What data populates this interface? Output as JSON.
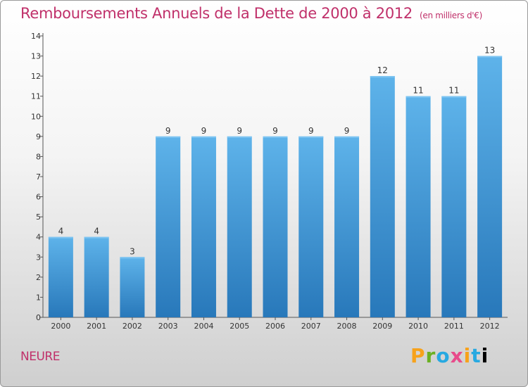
{
  "title": "Remboursements Annuels de la Dette de 2000 à 2012",
  "subtitle": "(en milliers d'€)",
  "commune": "NEURE",
  "logo": {
    "letters": [
      "P",
      "r",
      "o",
      "x",
      "i",
      "t",
      "i"
    ],
    "text": "Proxiti"
  },
  "colors": {
    "title": "#c0306a",
    "bar_top": "#5aaee6",
    "bar_bottom": "#2a7bbd"
  },
  "chart_data": {
    "type": "bar",
    "categories": [
      "2000",
      "2001",
      "2002",
      "2003",
      "2004",
      "2005",
      "2006",
      "2007",
      "2008",
      "2009",
      "2010",
      "2011",
      "2012"
    ],
    "values": [
      4,
      4,
      3,
      9,
      9,
      9,
      9,
      9,
      9,
      12,
      11,
      11,
      13
    ],
    "ylim": [
      0,
      14
    ],
    "yticks": [
      0,
      1,
      2,
      3,
      4,
      5,
      6,
      7,
      8,
      9,
      10,
      11,
      12,
      13,
      14
    ],
    "grid": false,
    "data_labels": true
  }
}
